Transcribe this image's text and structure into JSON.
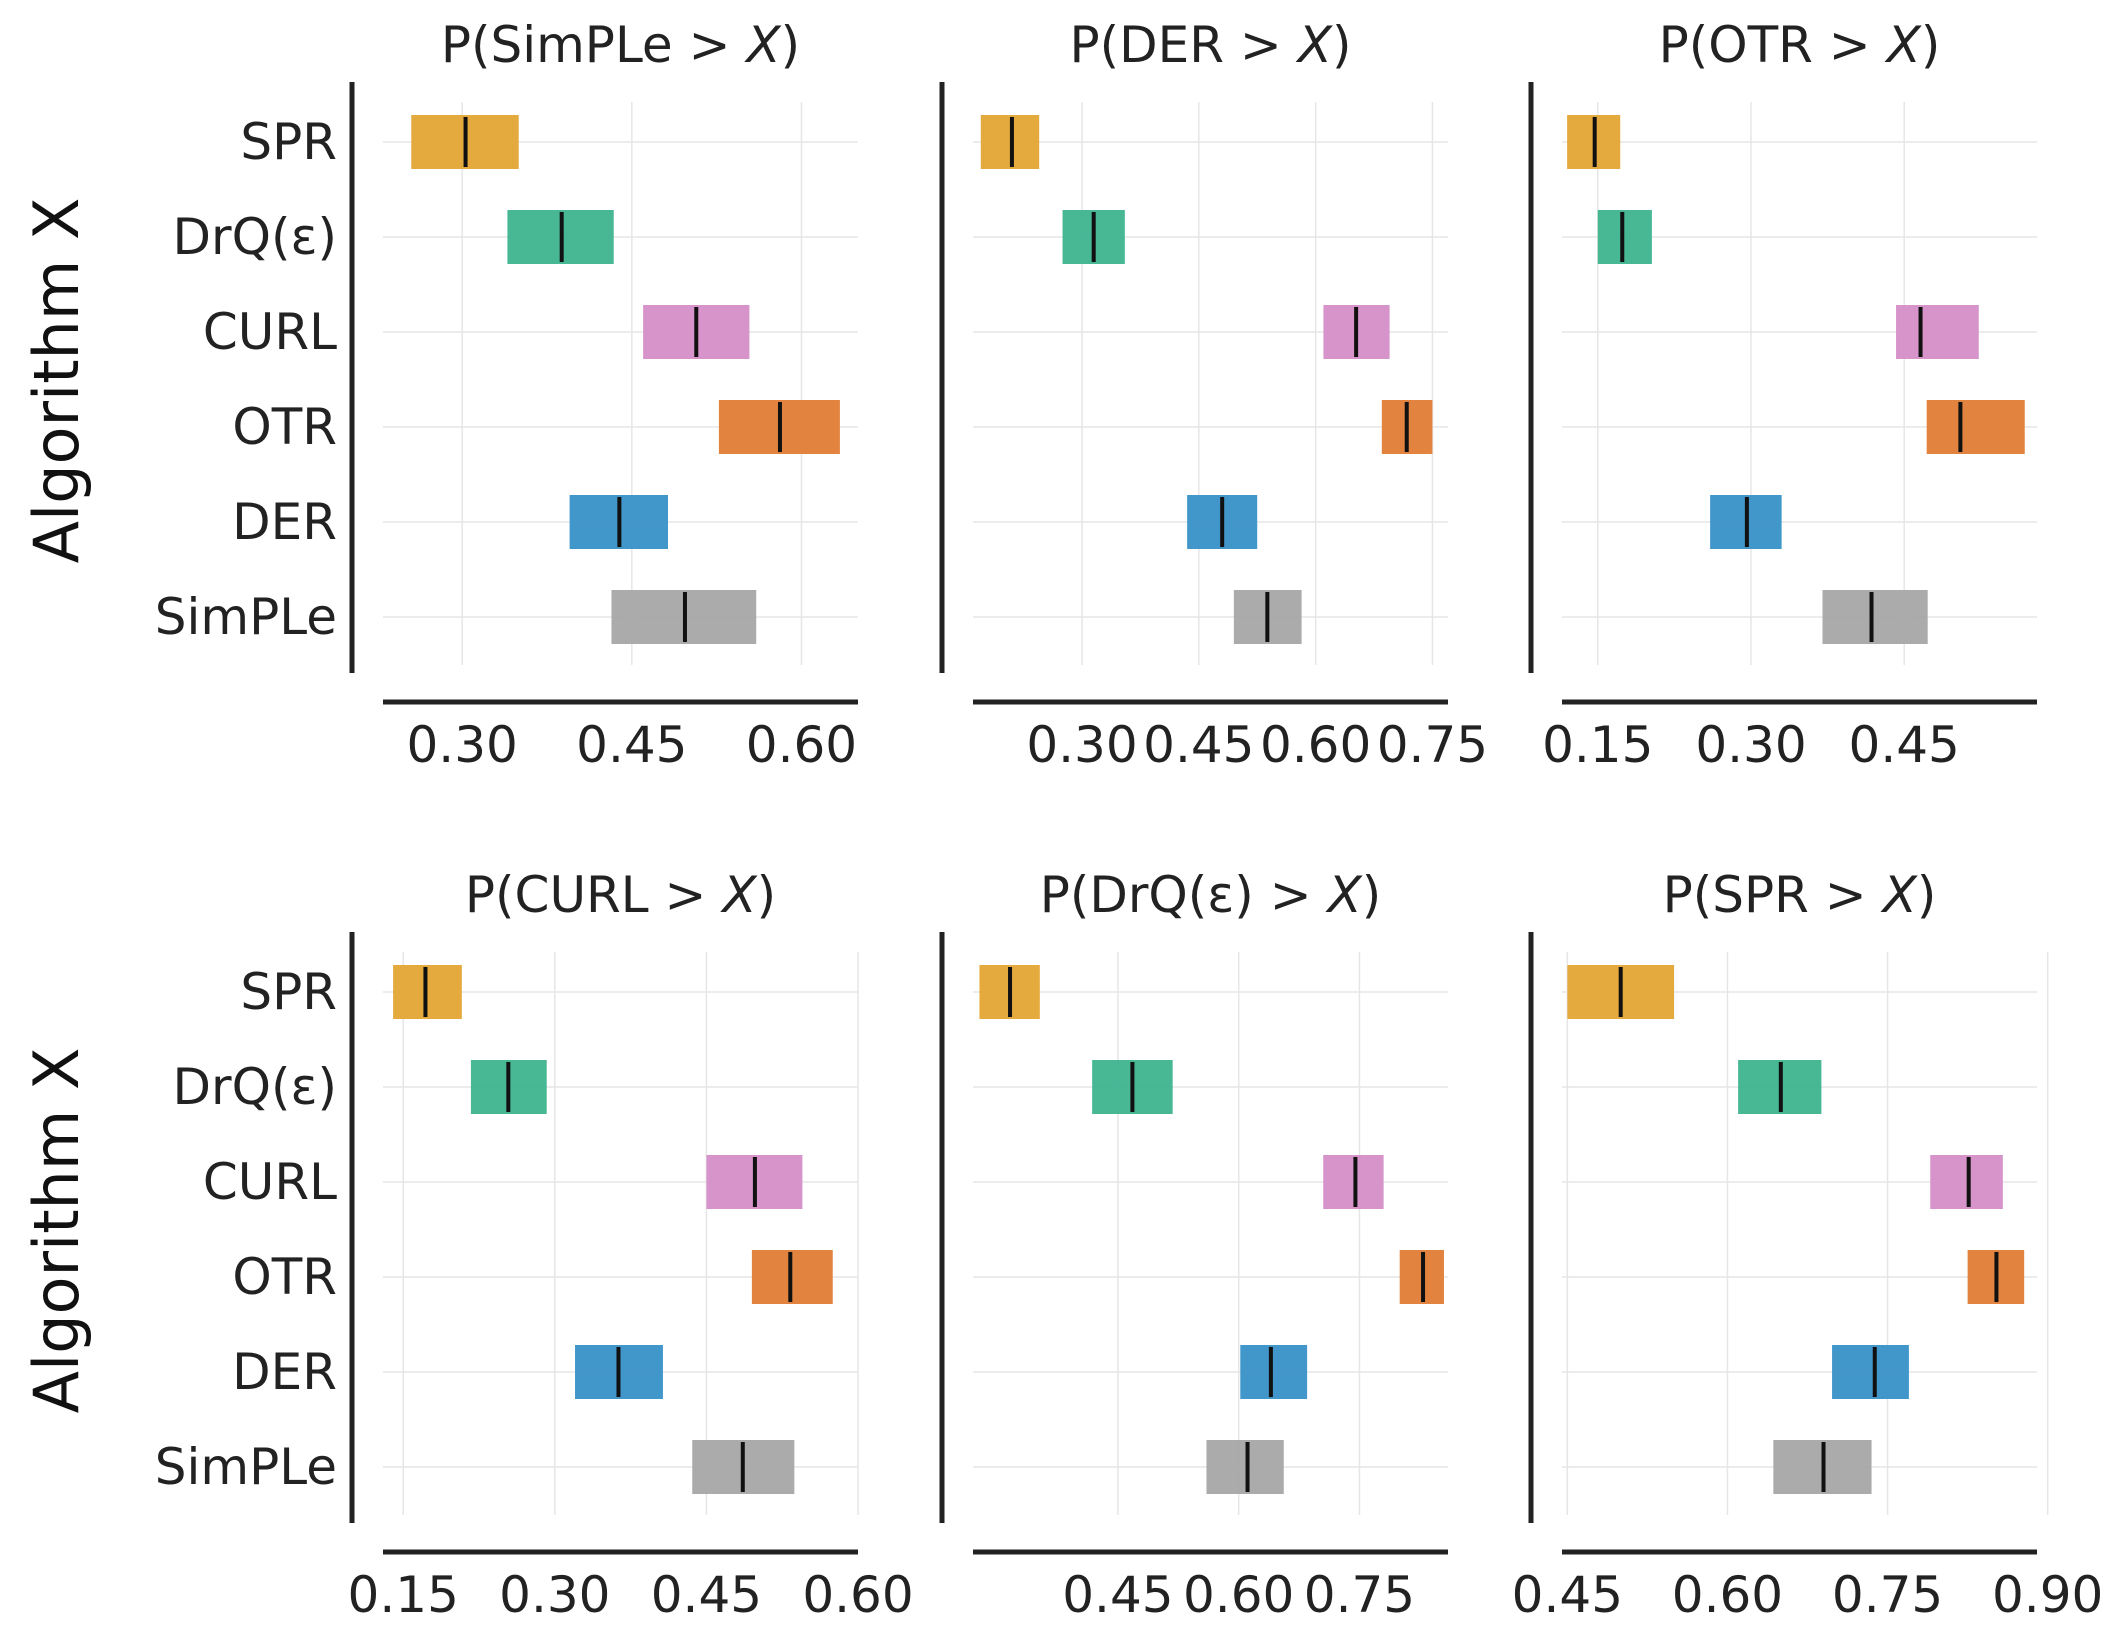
{
  "colors": {
    "SPR": "#e3a534",
    "DrQ(ε)": "#3db38e",
    "CURL": "#d48ec8",
    "OTR": "#e07d35",
    "DER": "#3891c7",
    "SimPLe": "#a6a6a6"
  },
  "chart_data": [
    {
      "type": "interval",
      "title_prefix": "P(SimPLe > ",
      "title_var": "X",
      "title_suffix": ")",
      "ylabel": "Algorithm X",
      "categories": [
        "SPR",
        "DrQ(ε)",
        "CURL",
        "OTR",
        "DER",
        "SimPLe"
      ],
      "low": [
        0.255,
        0.34,
        0.46,
        0.527,
        0.395,
        0.432
      ],
      "median": [
        0.303,
        0.388,
        0.507,
        0.581,
        0.439,
        0.497
      ],
      "high": [
        0.35,
        0.434,
        0.554,
        0.634,
        0.482,
        0.56
      ],
      "xlim": [
        0.23,
        0.65
      ],
      "xticks": [
        0.3,
        0.45,
        0.6
      ],
      "xtick_labels": [
        "0.30",
        "0.45",
        "0.60"
      ]
    },
    {
      "type": "interval",
      "title_prefix": "P(DER > ",
      "title_var": "X",
      "title_suffix": ")",
      "ylabel": "",
      "categories": [
        "SPR",
        "DrQ(ε)",
        "CURL",
        "OTR",
        "DER",
        "SimPLe"
      ],
      "low": [
        0.17,
        0.275,
        0.61,
        0.685,
        0.435,
        0.495
      ],
      "median": [
        0.21,
        0.315,
        0.652,
        0.717,
        0.48,
        0.538
      ],
      "high": [
        0.245,
        0.355,
        0.695,
        0.75,
        0.525,
        0.582
      ],
      "xlim": [
        0.16,
        0.77
      ],
      "xticks": [
        0.3,
        0.45,
        0.6,
        0.75
      ],
      "xtick_labels": [
        "0.30",
        "0.45",
        "0.60",
        "0.75"
      ]
    },
    {
      "type": "interval",
      "title_prefix": "P(OTR > ",
      "title_var": "X",
      "title_suffix": ")",
      "ylabel": "",
      "categories": [
        "SPR",
        "DrQ(ε)",
        "CURL",
        "OTR",
        "DER",
        "SimPLe"
      ],
      "low": [
        0.12,
        0.15,
        0.442,
        0.472,
        0.26,
        0.37
      ],
      "median": [
        0.147,
        0.174,
        0.466,
        0.505,
        0.296,
        0.418
      ],
      "high": [
        0.172,
        0.203,
        0.523,
        0.568,
        0.33,
        0.473
      ],
      "xlim": [
        0.115,
        0.58
      ],
      "xticks": [
        0.15,
        0.3,
        0.45
      ],
      "xtick_labels": [
        "0.15",
        "0.30",
        "0.45"
      ]
    },
    {
      "type": "interval",
      "title_prefix": "P(CURL > ",
      "title_var": "X",
      "title_suffix": ")",
      "ylabel": "Algorithm X",
      "categories": [
        "SPR",
        "DrQ(ε)",
        "CURL",
        "OTR",
        "DER",
        "SimPLe"
      ],
      "low": [
        0.14,
        0.217,
        0.45,
        0.495,
        0.32,
        0.436
      ],
      "median": [
        0.172,
        0.254,
        0.498,
        0.533,
        0.363,
        0.486
      ],
      "high": [
        0.208,
        0.292,
        0.545,
        0.575,
        0.407,
        0.537
      ],
      "xlim": [
        0.13,
        0.6
      ],
      "xticks": [
        0.15,
        0.3,
        0.45,
        0.6
      ],
      "xtick_labels": [
        "0.15",
        "0.30",
        "0.45",
        "0.60"
      ]
    },
    {
      "type": "interval",
      "title_prefix": "P(DrQ(ε) > ",
      "title_var": "X",
      "title_suffix": ")",
      "ylabel": "",
      "categories": [
        "SPR",
        "DrQ(ε)",
        "CURL",
        "OTR",
        "DER",
        "SimPLe"
      ],
      "low": [
        0.278,
        0.418,
        0.705,
        0.8,
        0.602,
        0.56
      ],
      "median": [
        0.316,
        0.468,
        0.745,
        0.829,
        0.64,
        0.611
      ],
      "high": [
        0.353,
        0.518,
        0.78,
        0.855,
        0.685,
        0.656
      ],
      "xlim": [
        0.27,
        0.86
      ],
      "xticks": [
        0.45,
        0.6,
        0.75
      ],
      "xtick_labels": [
        "0.45",
        "0.60",
        "0.75"
      ]
    },
    {
      "type": "interval",
      "title_prefix": "P(SPR > ",
      "title_var": "X",
      "title_suffix": ")",
      "ylabel": "",
      "categories": [
        "SPR",
        "DrQ(ε)",
        "CURL",
        "OTR",
        "DER",
        "SimPLe"
      ],
      "low": [
        0.45,
        0.61,
        0.79,
        0.825,
        0.698,
        0.643
      ],
      "median": [
        0.5,
        0.65,
        0.826,
        0.852,
        0.738,
        0.69
      ],
      "high": [
        0.55,
        0.688,
        0.858,
        0.878,
        0.77,
        0.735
      ],
      "xlim": [
        0.445,
        0.89
      ],
      "xticks": [
        0.45,
        0.6,
        0.75,
        0.9
      ],
      "xtick_labels": [
        "0.45",
        "0.60",
        "0.75",
        "0.90"
      ]
    }
  ]
}
